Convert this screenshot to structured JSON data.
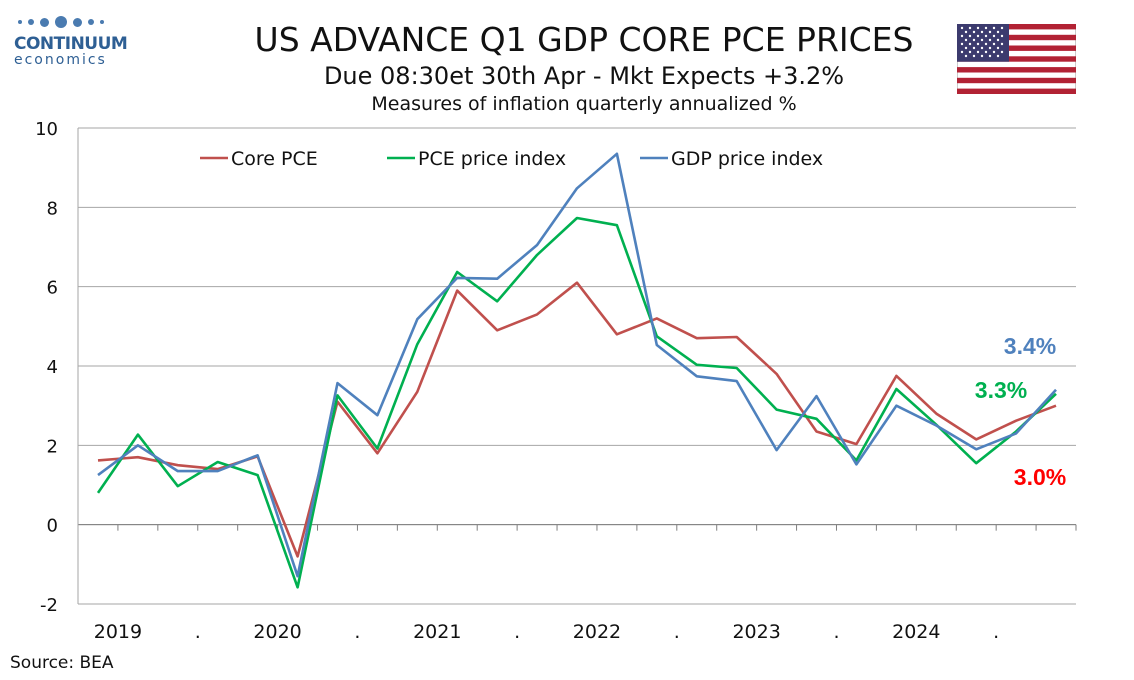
{
  "logo": {
    "name": "CONTINUUM",
    "sub": "economics"
  },
  "header": {
    "title": "US ADVANCE Q1 GDP CORE PCE PRICES",
    "subtitle": "Due 08:30et 30th Apr  - Mkt Expects +3.2%",
    "subtitle2": "Measures of inflation quarterly annualized %"
  },
  "source": "Source: BEA",
  "chart_data": {
    "type": "line",
    "title": "US ADVANCE Q1 GDP CORE PCE PRICES",
    "ylim": [
      -2,
      10
    ],
    "yticks": [
      -2,
      0,
      2,
      4,
      6,
      8,
      10
    ],
    "grid": true,
    "legend_position": "top",
    "x": [
      "2019Q1",
      "2019Q2",
      "2019Q3",
      "2019Q4",
      "2020Q1",
      "2020Q2",
      "2020Q3",
      "2020Q4",
      "2021Q1",
      "2021Q2",
      "2021Q3",
      "2021Q4",
      "2022Q1",
      "2022Q2",
      "2022Q3",
      "2022Q4",
      "2023Q1",
      "2023Q2",
      "2023Q3",
      "2023Q4",
      "2024Q1",
      "2024Q2",
      "2024Q3",
      "2024Q4",
      "2025Q1"
    ],
    "x_tick_labels": [
      "2019",
      ".",
      "2020",
      ".",
      "2021",
      ".",
      "2022",
      ".",
      "2023",
      ".",
      "2024",
      "."
    ],
    "series": [
      {
        "name": "Core PCE",
        "color": "#c0504d",
        "values": [
          1.62,
          1.7,
          1.5,
          1.4,
          1.72,
          -0.8,
          3.1,
          1.8,
          3.35,
          5.9,
          4.9,
          5.3,
          6.1,
          4.8,
          5.2,
          4.7,
          4.73,
          3.8,
          2.35,
          2.03,
          3.75,
          2.8,
          2.15,
          2.62,
          3.0
        ]
      },
      {
        "name": "PCE price index",
        "color": "#00b050",
        "values": [
          0.8,
          2.27,
          0.97,
          1.58,
          1.25,
          -1.58,
          3.26,
          1.92,
          4.55,
          6.37,
          5.63,
          6.8,
          7.73,
          7.55,
          4.75,
          4.03,
          3.95,
          2.9,
          2.67,
          1.62,
          3.42,
          2.52,
          1.55,
          2.35,
          3.3
        ]
      },
      {
        "name": "GDP price index",
        "color": "#4f81bd",
        "values": [
          1.25,
          2.0,
          1.35,
          1.35,
          1.75,
          -1.3,
          3.57,
          2.76,
          5.18,
          6.22,
          6.2,
          7.05,
          8.48,
          9.35,
          4.53,
          3.74,
          3.62,
          1.88,
          3.24,
          1.52,
          3.0,
          2.5,
          1.9,
          2.3,
          3.4
        ]
      }
    ],
    "annotations": [
      {
        "text": "3.4%",
        "color": "#4f81bd"
      },
      {
        "text": "3.3%",
        "color": "#00b050"
      },
      {
        "text": "3.0%",
        "color": "#ff0000"
      }
    ]
  }
}
